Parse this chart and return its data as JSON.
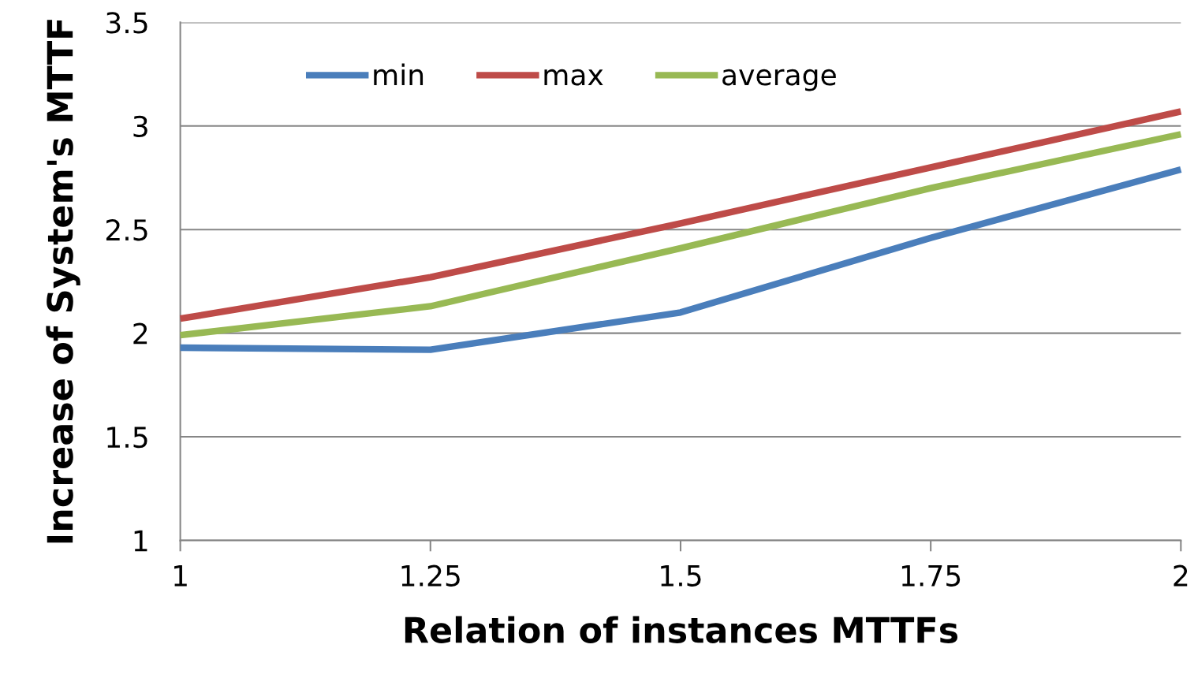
{
  "chart_data": {
    "type": "line",
    "xlabel": "Relation of instances MTTFs",
    "ylabel": "Increase of System's MTTF",
    "x": [
      1,
      1.25,
      1.5,
      1.75,
      2
    ],
    "series": [
      {
        "name": "min",
        "color": "#4a7ebb",
        "values": [
          1.93,
          1.92,
          2.1,
          2.46,
          2.79
        ]
      },
      {
        "name": "max",
        "color": "#be4b48",
        "values": [
          2.07,
          2.27,
          2.53,
          2.8,
          3.07
        ]
      },
      {
        "name": "average",
        "color": "#98b954",
        "values": [
          1.99,
          2.13,
          2.41,
          2.7,
          2.96
        ]
      }
    ],
    "xlim": [
      1,
      2
    ],
    "xticks": [
      1,
      1.25,
      1.5,
      1.75,
      2
    ],
    "ylim": [
      1,
      3.5
    ],
    "yticks": [
      1,
      1.5,
      2,
      2.5,
      3,
      3.5
    ],
    "grid": "y",
    "legend": "top left",
    "marker": "none",
    "line_style": "solid"
  }
}
